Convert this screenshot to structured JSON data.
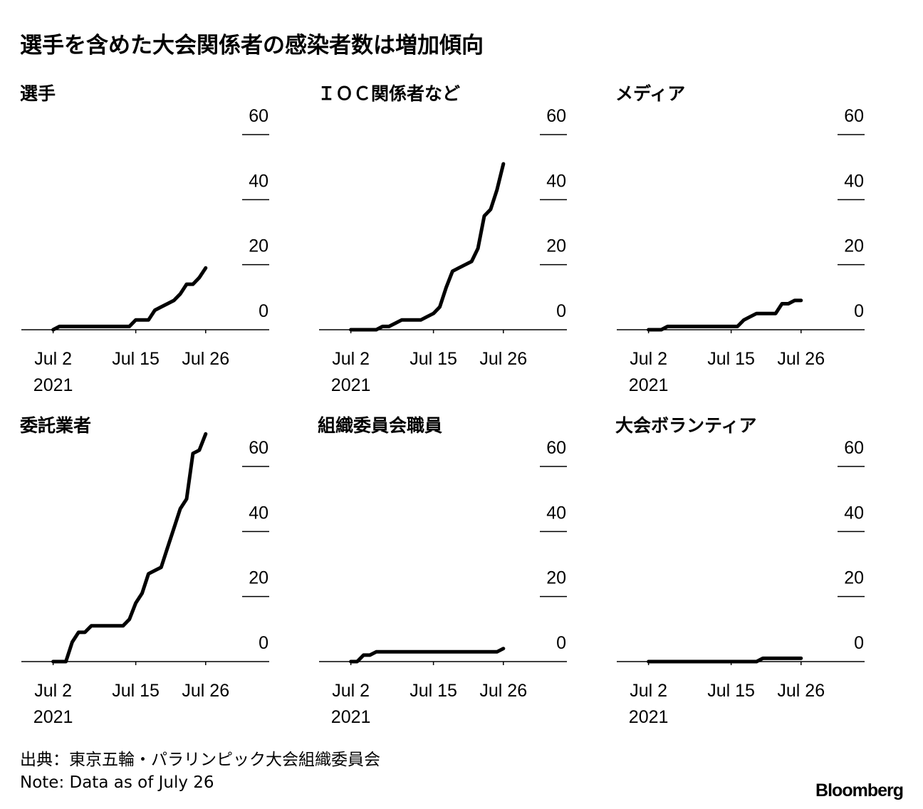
{
  "title": "選手を含めた大会関係者の感染者数は増加傾向",
  "chart_data": [
    {
      "type": "line",
      "title": "選手",
      "color": "#000000",
      "x": [
        "2021-07-02",
        "2021-07-03",
        "2021-07-04",
        "2021-07-05",
        "2021-07-06",
        "2021-07-07",
        "2021-07-08",
        "2021-07-09",
        "2021-07-10",
        "2021-07-11",
        "2021-07-12",
        "2021-07-13",
        "2021-07-14",
        "2021-07-15",
        "2021-07-16",
        "2021-07-17",
        "2021-07-18",
        "2021-07-19",
        "2021-07-20",
        "2021-07-21",
        "2021-07-22",
        "2021-07-23",
        "2021-07-24",
        "2021-07-25",
        "2021-07-26"
      ],
      "values": [
        0,
        1,
        1,
        1,
        1,
        1,
        1,
        1,
        1,
        1,
        1,
        1,
        1,
        3,
        3,
        3,
        6,
        7,
        8,
        9,
        11,
        14,
        14,
        16,
        19
      ],
      "xlim": [
        "2021-06-27",
        "2021-08-05"
      ],
      "xticks": [
        {
          "value": "2021-07-02",
          "label": "Jul 2\n2021"
        },
        {
          "value": "2021-07-15",
          "label": "Jul 15"
        },
        {
          "value": "2021-07-26",
          "label": "Jul 26"
        }
      ],
      "ylim": [
        0,
        60
      ],
      "yticks": [
        0,
        20,
        40,
        60
      ]
    },
    {
      "type": "line",
      "title": "ＩＯＣ関係者など",
      "color": "#000000",
      "x": [
        "2021-07-02",
        "2021-07-03",
        "2021-07-04",
        "2021-07-05",
        "2021-07-06",
        "2021-07-07",
        "2021-07-08",
        "2021-07-09",
        "2021-07-10",
        "2021-07-11",
        "2021-07-12",
        "2021-07-13",
        "2021-07-14",
        "2021-07-15",
        "2021-07-16",
        "2021-07-17",
        "2021-07-18",
        "2021-07-19",
        "2021-07-20",
        "2021-07-21",
        "2021-07-22",
        "2021-07-23",
        "2021-07-24",
        "2021-07-25",
        "2021-07-26"
      ],
      "values": [
        0,
        0,
        0,
        0,
        0,
        1,
        1,
        2,
        3,
        3,
        3,
        3,
        4,
        5,
        7,
        13,
        18,
        19,
        20,
        21,
        25,
        35,
        37,
        43,
        51
      ],
      "xlim": [
        "2021-06-27",
        "2021-08-05"
      ],
      "xticks": [
        {
          "value": "2021-07-02",
          "label": "Jul 2\n2021"
        },
        {
          "value": "2021-07-15",
          "label": "Jul 15"
        },
        {
          "value": "2021-07-26",
          "label": "Jul 26"
        }
      ],
      "ylim": [
        0,
        60
      ],
      "yticks": [
        0,
        20,
        40,
        60
      ]
    },
    {
      "type": "line",
      "title": "メディア",
      "color": "#000000",
      "x": [
        "2021-07-02",
        "2021-07-03",
        "2021-07-04",
        "2021-07-05",
        "2021-07-06",
        "2021-07-07",
        "2021-07-08",
        "2021-07-09",
        "2021-07-10",
        "2021-07-11",
        "2021-07-12",
        "2021-07-13",
        "2021-07-14",
        "2021-07-15",
        "2021-07-16",
        "2021-07-17",
        "2021-07-18",
        "2021-07-19",
        "2021-07-20",
        "2021-07-21",
        "2021-07-22",
        "2021-07-23",
        "2021-07-24",
        "2021-07-25",
        "2021-07-26"
      ],
      "values": [
        0,
        0,
        0,
        1,
        1,
        1,
        1,
        1,
        1,
        1,
        1,
        1,
        1,
        1,
        1,
        3,
        4,
        5,
        5,
        5,
        5,
        8,
        8,
        9,
        9
      ],
      "xlim": [
        "2021-06-27",
        "2021-08-05"
      ],
      "xticks": [
        {
          "value": "2021-07-02",
          "label": "Jul 2\n2021"
        },
        {
          "value": "2021-07-15",
          "label": "Jul 15"
        },
        {
          "value": "2021-07-26",
          "label": "Jul 26"
        }
      ],
      "ylim": [
        0,
        60
      ],
      "yticks": [
        0,
        20,
        40,
        60
      ]
    },
    {
      "type": "line",
      "title": "委託業者",
      "color": "#000000",
      "x": [
        "2021-07-02",
        "2021-07-03",
        "2021-07-04",
        "2021-07-05",
        "2021-07-06",
        "2021-07-07",
        "2021-07-08",
        "2021-07-09",
        "2021-07-10",
        "2021-07-11",
        "2021-07-12",
        "2021-07-13",
        "2021-07-14",
        "2021-07-15",
        "2021-07-16",
        "2021-07-17",
        "2021-07-18",
        "2021-07-19",
        "2021-07-20",
        "2021-07-21",
        "2021-07-22",
        "2021-07-23",
        "2021-07-24",
        "2021-07-25",
        "2021-07-26"
      ],
      "values": [
        0,
        0,
        0,
        6,
        9,
        9,
        11,
        11,
        11,
        11,
        11,
        11,
        13,
        18,
        21,
        27,
        28,
        29,
        35,
        41,
        47,
        50,
        64,
        65,
        70
      ],
      "xlim": [
        "2021-06-27",
        "2021-08-05"
      ],
      "xticks": [
        {
          "value": "2021-07-02",
          "label": "Jul 2\n2021"
        },
        {
          "value": "2021-07-15",
          "label": "Jul 15"
        },
        {
          "value": "2021-07-26",
          "label": "Jul 26"
        }
      ],
      "ylim": [
        0,
        60
      ],
      "yticks": [
        0,
        20,
        40,
        60
      ]
    },
    {
      "type": "line",
      "title": "組織委員会職員",
      "color": "#000000",
      "x": [
        "2021-07-02",
        "2021-07-03",
        "2021-07-04",
        "2021-07-05",
        "2021-07-06",
        "2021-07-07",
        "2021-07-08",
        "2021-07-09",
        "2021-07-10",
        "2021-07-11",
        "2021-07-12",
        "2021-07-13",
        "2021-07-14",
        "2021-07-15",
        "2021-07-16",
        "2021-07-17",
        "2021-07-18",
        "2021-07-19",
        "2021-07-20",
        "2021-07-21",
        "2021-07-22",
        "2021-07-23",
        "2021-07-24",
        "2021-07-25",
        "2021-07-26"
      ],
      "values": [
        0,
        0,
        2,
        2,
        3,
        3,
        3,
        3,
        3,
        3,
        3,
        3,
        3,
        3,
        3,
        3,
        3,
        3,
        3,
        3,
        3,
        3,
        3,
        3,
        4
      ],
      "xlim": [
        "2021-06-27",
        "2021-08-05"
      ],
      "xticks": [
        {
          "value": "2021-07-02",
          "label": "Jul 2\n2021"
        },
        {
          "value": "2021-07-15",
          "label": "Jul 15"
        },
        {
          "value": "2021-07-26",
          "label": "Jul 26"
        }
      ],
      "ylim": [
        0,
        60
      ],
      "yticks": [
        0,
        20,
        40,
        60
      ]
    },
    {
      "type": "line",
      "title": "大会ボランティア",
      "color": "#000000",
      "x": [
        "2021-07-02",
        "2021-07-03",
        "2021-07-04",
        "2021-07-05",
        "2021-07-06",
        "2021-07-07",
        "2021-07-08",
        "2021-07-09",
        "2021-07-10",
        "2021-07-11",
        "2021-07-12",
        "2021-07-13",
        "2021-07-14",
        "2021-07-15",
        "2021-07-16",
        "2021-07-17",
        "2021-07-18",
        "2021-07-19",
        "2021-07-20",
        "2021-07-21",
        "2021-07-22",
        "2021-07-23",
        "2021-07-24",
        "2021-07-25",
        "2021-07-26"
      ],
      "values": [
        0,
        0,
        0,
        0,
        0,
        0,
        0,
        0,
        0,
        0,
        0,
        0,
        0,
        0,
        0,
        0,
        0,
        0,
        1,
        1,
        1,
        1,
        1,
        1,
        1
      ],
      "xlim": [
        "2021-06-27",
        "2021-08-05"
      ],
      "xticks": [
        {
          "value": "2021-07-02",
          "label": "Jul 2\n2021"
        },
        {
          "value": "2021-07-15",
          "label": "Jul 15"
        },
        {
          "value": "2021-07-26",
          "label": "Jul 26"
        }
      ],
      "ylim": [
        0,
        60
      ],
      "yticks": [
        0,
        20,
        40,
        60
      ]
    }
  ],
  "source": "出典：東京五輪・パラリンピック大会組織委員会",
  "note": "Note: Data as of July 26",
  "logo": "Bloomberg"
}
